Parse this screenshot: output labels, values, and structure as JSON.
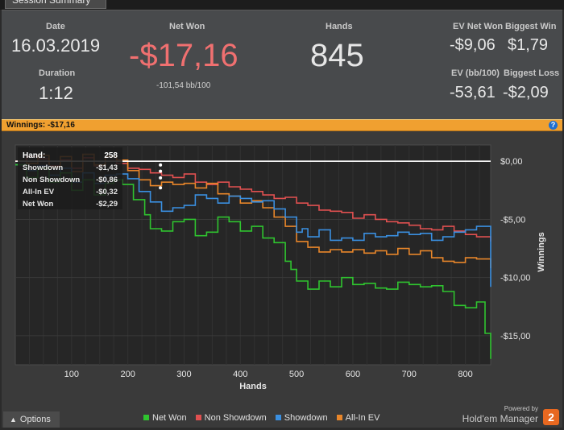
{
  "tab": {
    "label": "Session Summary"
  },
  "summary": {
    "date_label": "Date",
    "date": "16.03.2019",
    "duration_label": "Duration",
    "duration": "1:12",
    "netwon_label": "Net Won",
    "netwon": "-$17,16",
    "bb100": "-101,54 bb/100",
    "hands_label": "Hands",
    "hands": "845",
    "ev_net_label": "EV Net Won",
    "ev_net": "-$9,06",
    "biggest_win_label": "Biggest Win",
    "biggest_win": "$1,79",
    "ev_bb_label": "EV (bb/100)",
    "ev_bb": "-53,61",
    "biggest_loss_label": "Biggest Loss",
    "biggest_loss": "-$2,09"
  },
  "winnings_bar": {
    "text": "Winnings:  -$17,16",
    "help": "?"
  },
  "tooltip": {
    "hand_label": "Hand:",
    "hand_value": "258",
    "rows": [
      {
        "label": "Showdown",
        "value": "-$1,43"
      },
      {
        "label": "Non Showdown",
        "value": "-$0,86"
      },
      {
        "label": "All-In EV",
        "value": "-$0,32"
      },
      {
        "label": "Net Won",
        "value": "-$2,29"
      }
    ]
  },
  "footer": {
    "options": "Options",
    "powered": "Powered by",
    "brand": "Hold'em Manager",
    "logo": "2"
  },
  "colors": {
    "netwon": "#2fc42f",
    "nonshowdown": "#e05050",
    "showdown": "#3a8fe0",
    "allinev": "#e8862a"
  },
  "chart_data": {
    "type": "line",
    "xlabel": "Hands",
    "ylabel": "Winnings",
    "xlim": [
      0,
      845
    ],
    "ylim": [
      -17.5,
      1.4
    ],
    "xticks": [
      100,
      200,
      300,
      400,
      500,
      600,
      700,
      800
    ],
    "yticks": [
      0,
      -5,
      -10,
      -15
    ],
    "ytick_labels": [
      "$0,00",
      "-$5,00",
      "-$10,00",
      "-$15,00"
    ],
    "xtick_labels": [
      "100",
      "200",
      "300",
      "400",
      "500",
      "600",
      "700",
      "800"
    ],
    "grid": true,
    "legend_position": "bottom",
    "series": [
      {
        "name": "Net Won",
        "key": "netwon",
        "x": [
          0,
          20,
          40,
          60,
          80,
          100,
          120,
          140,
          160,
          175,
          190,
          210,
          230,
          240,
          260,
          280,
          300,
          320,
          340,
          360,
          380,
          400,
          420,
          440,
          460,
          480,
          490,
          500,
          520,
          540,
          560,
          580,
          600,
          620,
          640,
          660,
          680,
          700,
          720,
          740,
          760,
          780,
          800,
          820,
          835,
          845
        ],
        "y": [
          -0.3,
          -1.4,
          -0.6,
          -1.8,
          -1.0,
          -2.5,
          -1.6,
          -2.9,
          -1.9,
          -1.6,
          -2.0,
          -3.3,
          -4.6,
          -5.8,
          -6.0,
          -5.2,
          -5.0,
          -6.4,
          -6.1,
          -4.8,
          -5.2,
          -6.0,
          -5.6,
          -6.6,
          -7.0,
          -8.6,
          -9.3,
          -10.3,
          -11.0,
          -10.3,
          -10.8,
          -10.0,
          -10.6,
          -10.5,
          -10.9,
          -11.0,
          -10.4,
          -10.6,
          -10.8,
          -10.7,
          -11.2,
          -12.4,
          -12.6,
          -12.1,
          -14.8,
          -17.0
        ]
      },
      {
        "name": "Non Showdown",
        "key": "nonshowdown",
        "x": [
          0,
          20,
          40,
          60,
          80,
          100,
          120,
          140,
          160,
          180,
          200,
          220,
          240,
          260,
          280,
          300,
          320,
          340,
          360,
          380,
          400,
          420,
          440,
          460,
          480,
          500,
          520,
          540,
          560,
          580,
          600,
          620,
          640,
          660,
          680,
          700,
          720,
          740,
          760,
          780,
          800,
          820,
          845
        ],
        "y": [
          0,
          0.4,
          0.2,
          -0.4,
          0.1,
          -0.6,
          0.3,
          -0.4,
          0.0,
          -0.2,
          -0.6,
          -0.7,
          -1.0,
          -1.2,
          -1.4,
          -1.1,
          -1.8,
          -2.0,
          -1.8,
          -2.2,
          -2.4,
          -2.6,
          -2.9,
          -3.2,
          -3.1,
          -3.6,
          -3.8,
          -4.2,
          -4.3,
          -4.4,
          -4.9,
          -4.6,
          -5.0,
          -5.2,
          -5.3,
          -5.5,
          -5.8,
          -5.9,
          -5.6,
          -6.0,
          -6.3,
          -6.5,
          -6.9
        ]
      },
      {
        "name": "Showdown",
        "key": "showdown",
        "x": [
          0,
          20,
          40,
          60,
          80,
          100,
          120,
          140,
          160,
          180,
          200,
          220,
          240,
          260,
          280,
          300,
          320,
          340,
          360,
          380,
          400,
          420,
          440,
          460,
          480,
          500,
          510,
          520,
          540,
          560,
          580,
          600,
          620,
          640,
          660,
          680,
          700,
          720,
          740,
          760,
          780,
          800,
          820,
          845
        ],
        "y": [
          -0.3,
          -0.8,
          -0.4,
          -1.2,
          -0.6,
          -1.8,
          -1.0,
          -1.9,
          -1.2,
          -1.1,
          -1.5,
          -2.6,
          -3.5,
          -4.3,
          -4.0,
          -3.8,
          -2.9,
          -3.2,
          -3.6,
          -3.0,
          -3.2,
          -3.5,
          -3.4,
          -4.1,
          -4.8,
          -6.1,
          -5.8,
          -6.5,
          -5.9,
          -6.8,
          -6.6,
          -6.8,
          -6.2,
          -6.5,
          -6.4,
          -6.1,
          -6.3,
          -6.2,
          -6.8,
          -6.5,
          -6.1,
          -5.9,
          -5.6,
          -10.8
        ]
      },
      {
        "name": "All-In EV",
        "key": "allinev",
        "x": [
          0,
          20,
          40,
          60,
          80,
          100,
          120,
          140,
          160,
          180,
          200,
          220,
          240,
          260,
          280,
          300,
          320,
          340,
          360,
          380,
          400,
          420,
          440,
          460,
          480,
          500,
          520,
          540,
          560,
          580,
          600,
          620,
          640,
          660,
          680,
          700,
          720,
          740,
          760,
          780,
          800,
          820,
          845
        ],
        "y": [
          0,
          -0.2,
          0.5,
          -0.5,
          0.4,
          -0.9,
          0.6,
          -0.3,
          0.4,
          0.1,
          -0.8,
          -1.6,
          -2.1,
          -1.8,
          -2.0,
          -1.9,
          -2.3,
          -1.9,
          -2.8,
          -3.0,
          -3.6,
          -3.4,
          -4.0,
          -4.8,
          -5.6,
          -6.9,
          -7.4,
          -7.8,
          -7.6,
          -7.8,
          -7.6,
          -7.9,
          -7.7,
          -8.0,
          -7.5,
          -8.0,
          -7.7,
          -8.3,
          -8.6,
          -8.7,
          -8.3,
          -8.4,
          -9.2
        ]
      }
    ]
  }
}
